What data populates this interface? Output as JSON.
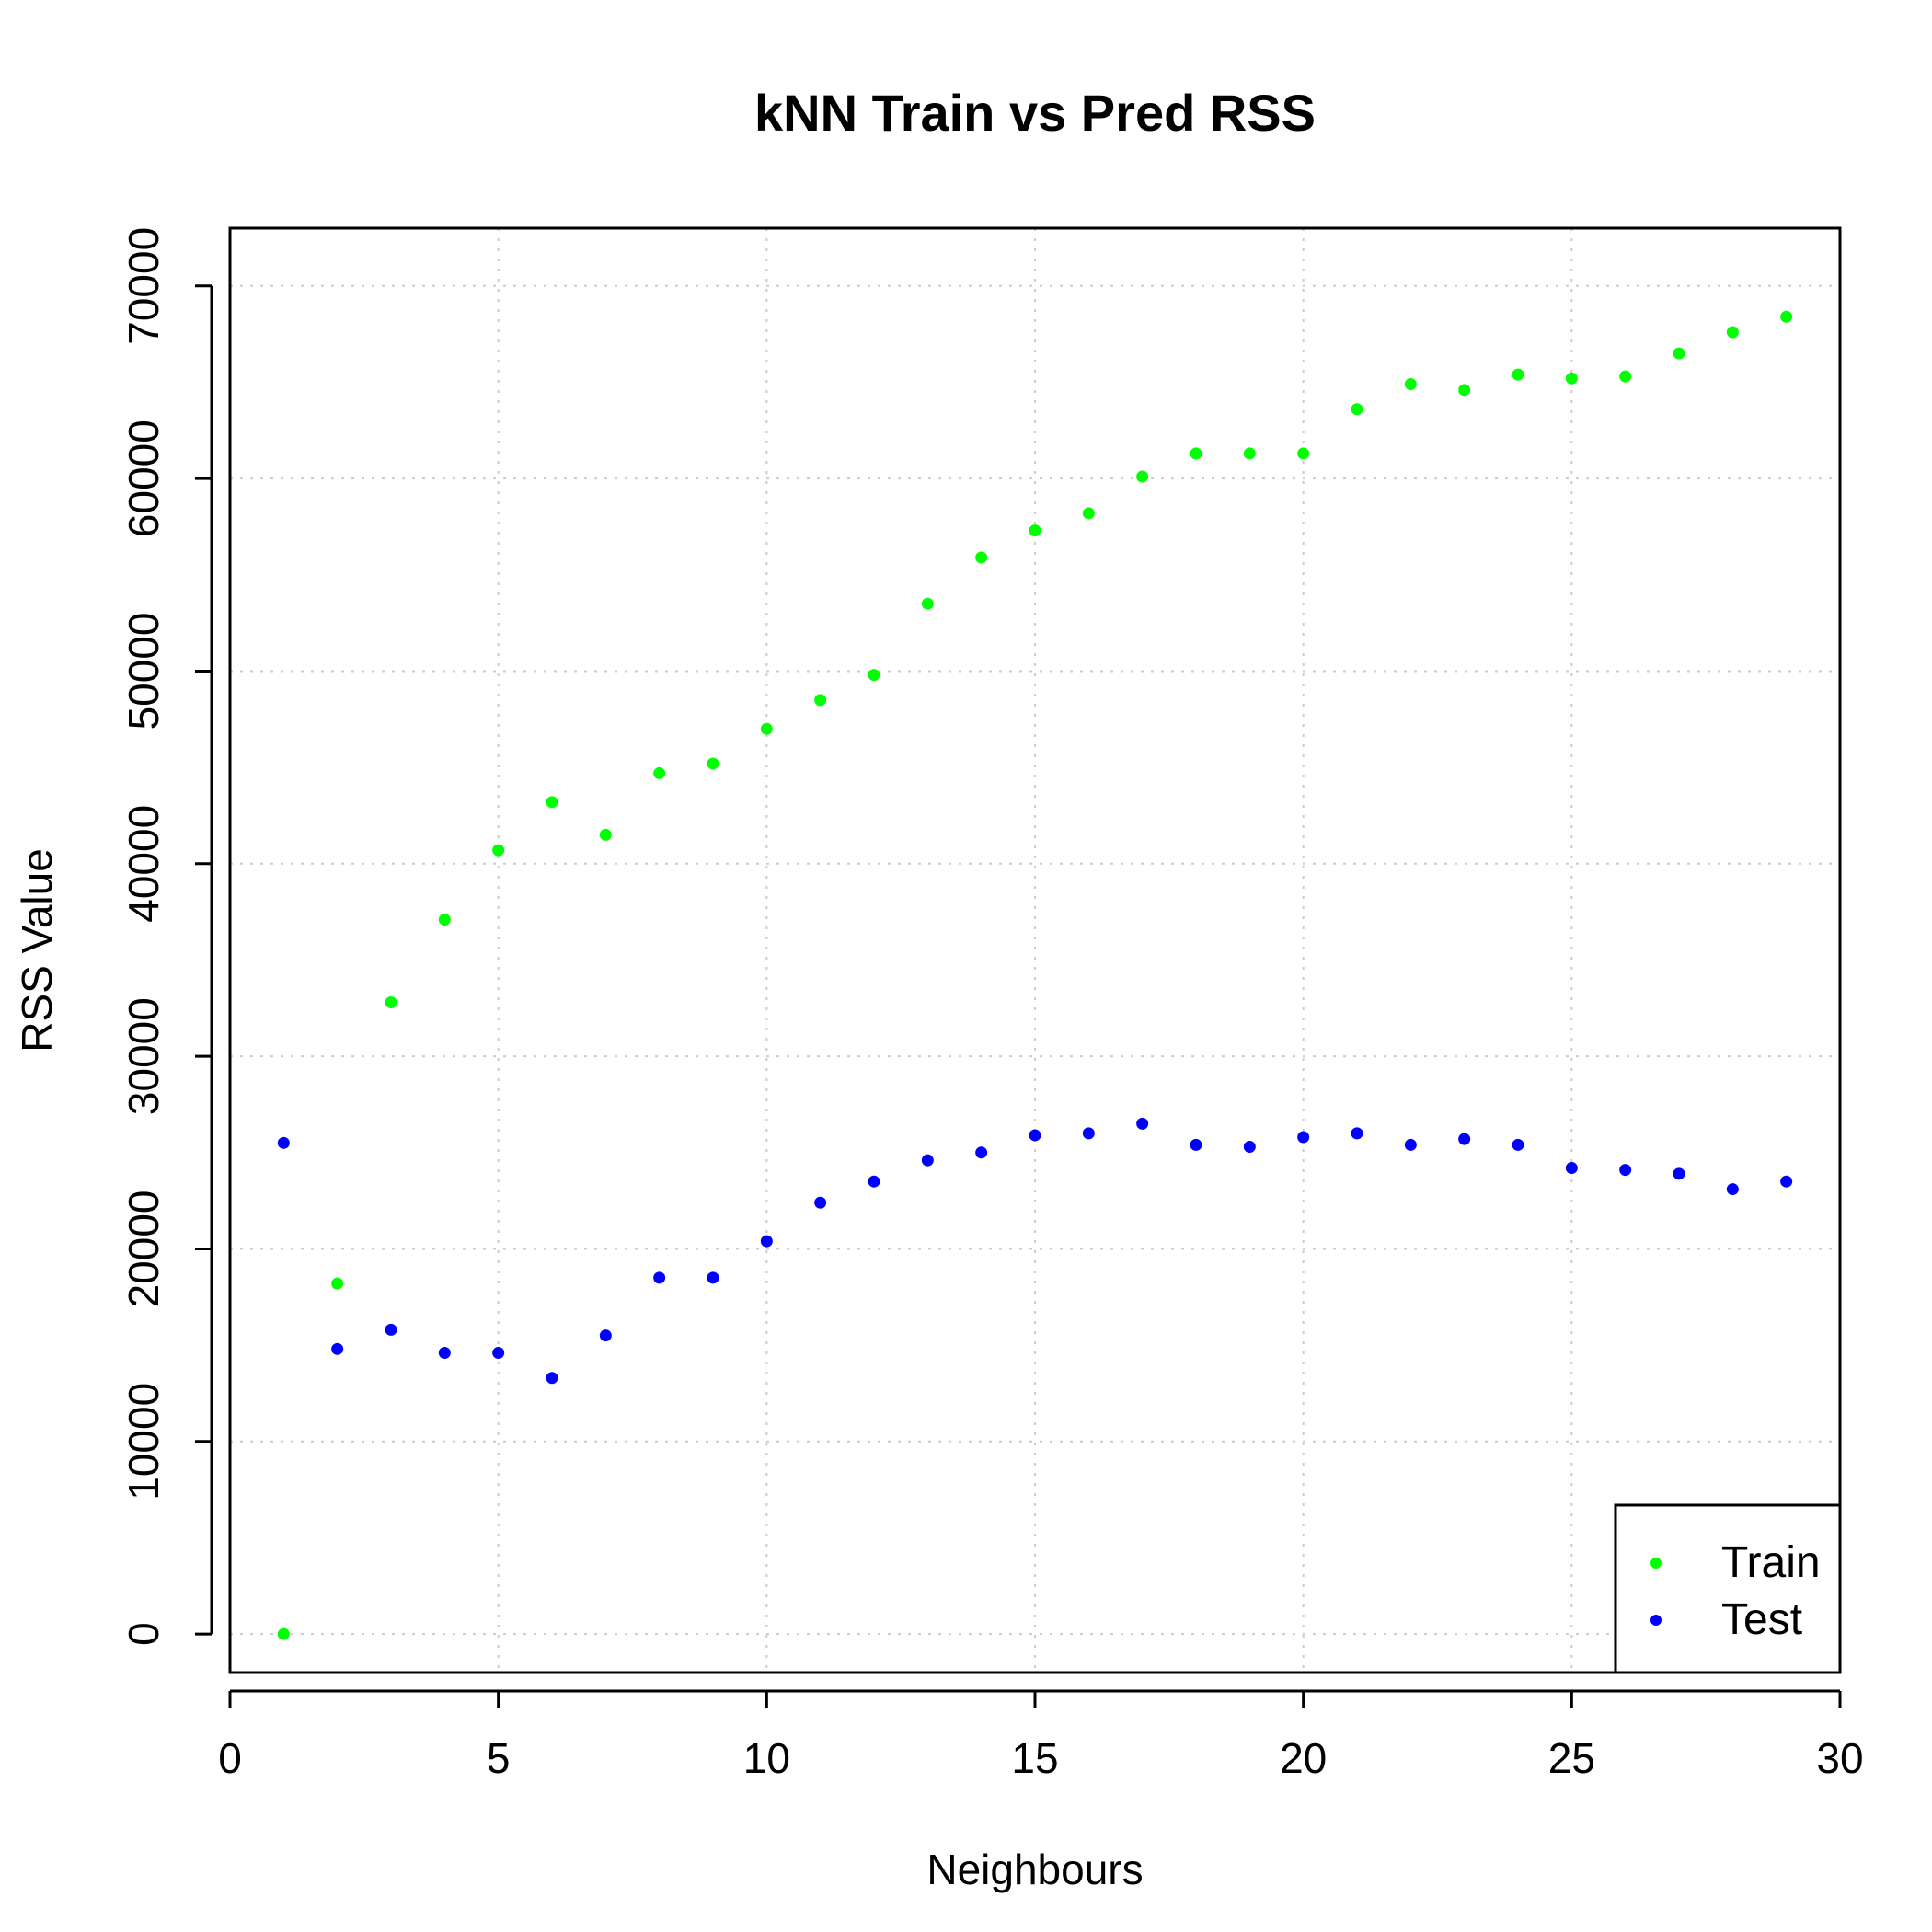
{
  "chart_data": {
    "type": "scatter",
    "title": "kNN Train vs Pred RSS",
    "xlabel": "Neighbours",
    "ylabel": "RSS Value",
    "xlim": [
      0,
      30
    ],
    "ylim": [
      -2000,
      73000
    ],
    "xticks": [
      0,
      5,
      10,
      15,
      20,
      25,
      30
    ],
    "yticks": [
      0,
      10000,
      20000,
      30000,
      40000,
      50000,
      60000,
      70000
    ],
    "grid": true,
    "legend_position": "bottom-right",
    "x": [
      1,
      2,
      3,
      4,
      5,
      6,
      7,
      8,
      9,
      10,
      11,
      12,
      13,
      14,
      15,
      16,
      17,
      18,
      19,
      20,
      21,
      22,
      23,
      24,
      25,
      26,
      27,
      28,
      29
    ],
    "series": [
      {
        "name": "Train",
        "color": "#00ff00",
        "values": [
          0,
          18200,
          32800,
          37100,
          40700,
          43200,
          41500,
          44700,
          45200,
          47000,
          48500,
          49800,
          53500,
          55900,
          57300,
          58200,
          60100,
          61300,
          61300,
          61300,
          63600,
          64900,
          64600,
          65400,
          65200,
          65300,
          66500,
          67600,
          68400
        ]
      },
      {
        "name": "Test",
        "color": "#0000ff",
        "values": [
          25500,
          14800,
          15800,
          14600,
          14600,
          13300,
          15500,
          18500,
          18500,
          20400,
          22400,
          23500,
          24600,
          25000,
          25900,
          26000,
          26500,
          25400,
          25300,
          25800,
          26000,
          25400,
          25700,
          25400,
          24200,
          24100,
          23900,
          23100,
          23500
        ]
      }
    ]
  }
}
